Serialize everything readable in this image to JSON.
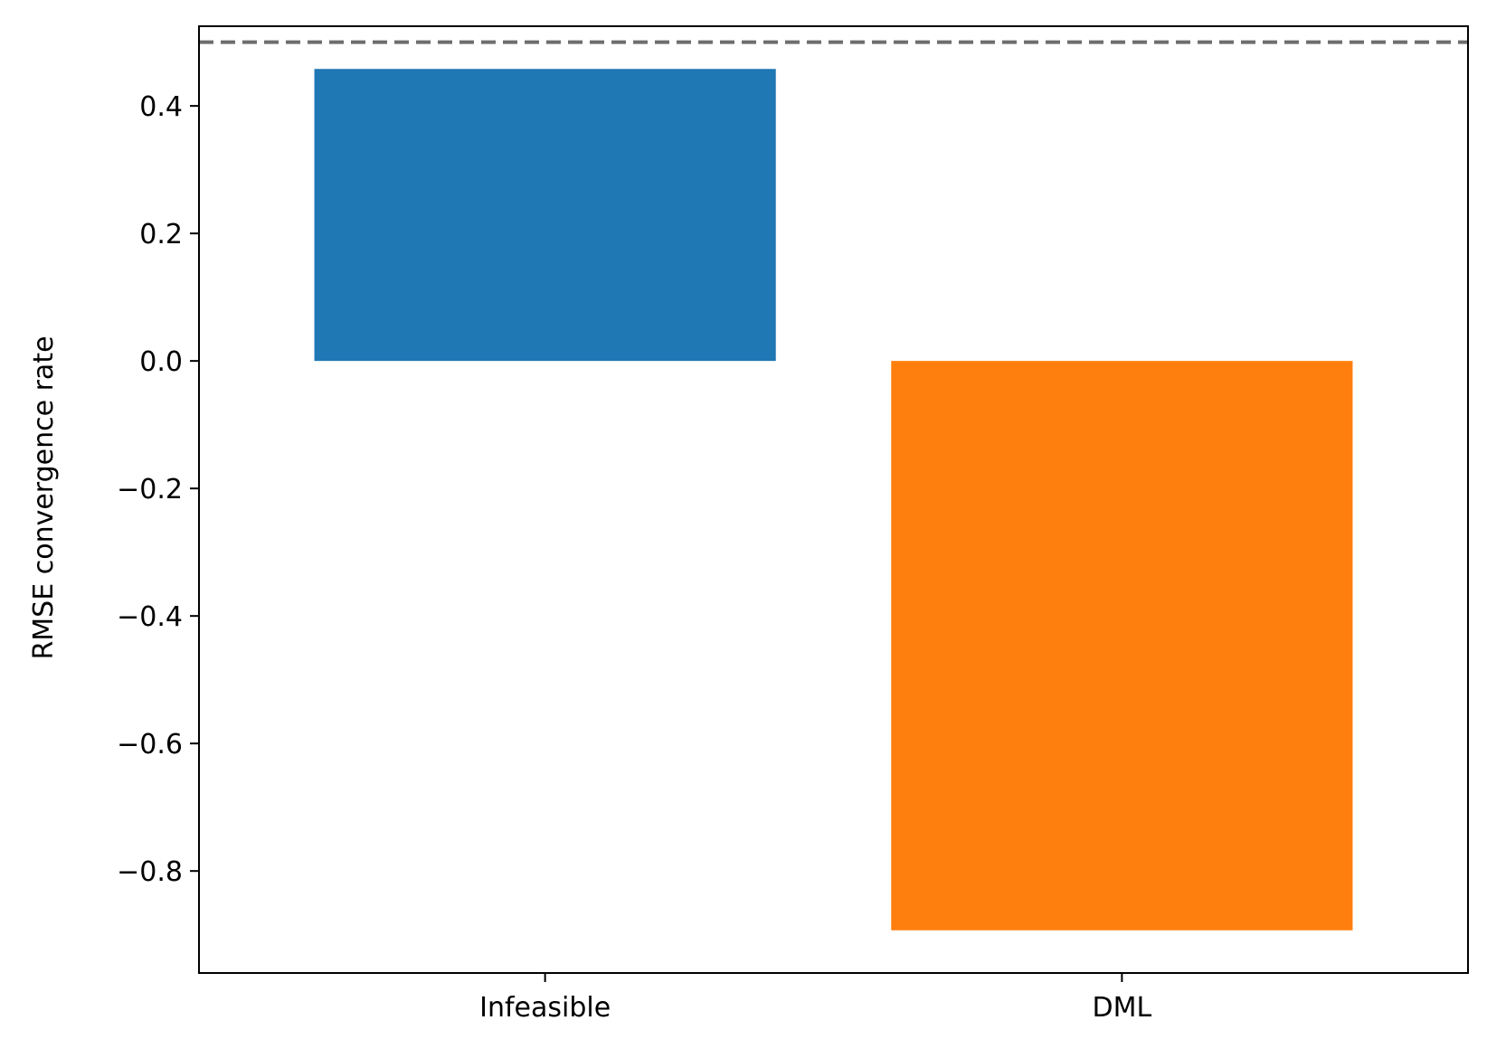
{
  "chart_data": {
    "type": "bar",
    "title": "",
    "xlabel": "",
    "ylabel": "RMSE convergence rate",
    "categories": [
      "Infeasible",
      "DML"
    ],
    "values": [
      0.458,
      -0.893
    ],
    "colors": [
      "#1f77b4",
      "#ff7f0e"
    ],
    "ylim": [
      -0.96,
      0.525
    ],
    "yticks": [
      0.4,
      0.2,
      0.0,
      -0.2,
      -0.4,
      -0.6,
      -0.8
    ],
    "ytick_labels": [
      "0.4",
      "0.2",
      "0.0",
      "−0.2",
      "−0.4",
      "−0.6",
      "−0.8"
    ],
    "reference_line": {
      "y": 0.5,
      "style": "dashed",
      "color": "#6e6e6e"
    },
    "grid": false,
    "legend": "none"
  }
}
